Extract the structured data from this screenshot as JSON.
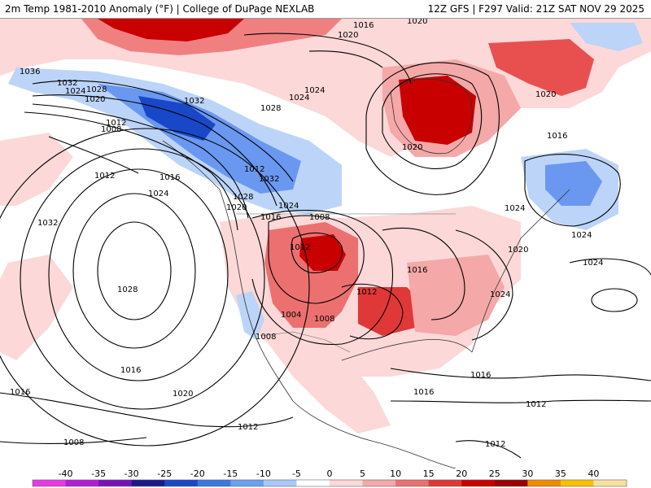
{
  "header": {
    "left": "2m Temp 1981-2010 Anomaly (°F) | College of DuPage NEXLAB",
    "right": "12Z GFS | F297 Valid: 21Z SAT NOV 29 2025"
  },
  "isobar_labels": [
    "1036",
    "1032",
    "1028",
    "1024",
    "1020",
    "1016",
    "1012",
    "1008",
    "1004"
  ],
  "map_labels": [
    {
      "id": "l1036nw",
      "text": "1036"
    },
    {
      "id": "l1032nw",
      "text": "1032"
    },
    {
      "id": "l1028nw",
      "text": "1028"
    },
    {
      "id": "l1024nw",
      "text": "1024"
    },
    {
      "id": "l1020nw",
      "text": "1020"
    },
    {
      "id": "l1012nw",
      "text": "1012"
    },
    {
      "id": "l1008nw",
      "text": "1008"
    },
    {
      "id": "l1032ak",
      "text": "1032"
    },
    {
      "id": "l1028ak",
      "text": "1028"
    },
    {
      "id": "l1024ak",
      "text": "1024"
    },
    {
      "id": "l1020ak",
      "text": "1020"
    },
    {
      "id": "l1016top",
      "text": "1016"
    },
    {
      "id": "l1020top",
      "text": "1020"
    },
    {
      "id": "l1024top",
      "text": "1024"
    },
    {
      "id": "l1020hb",
      "text": "1020"
    },
    {
      "id": "l1012hb",
      "text": "1012"
    },
    {
      "id": "l1016pac",
      "text": "1016"
    },
    {
      "id": "l1024pac",
      "text": "1024"
    },
    {
      "id": "l1028pac",
      "text": "1028"
    },
    {
      "id": "l1032pac",
      "text": "1032"
    },
    {
      "id": "l1016w",
      "text": "1016"
    },
    {
      "id": "l1020s",
      "text": "1020"
    },
    {
      "id": "l1016s",
      "text": "1016"
    },
    {
      "id": "l1012sw",
      "text": "1012"
    },
    {
      "id": "l1012s",
      "text": "1012"
    },
    {
      "id": "l1032bc",
      "text": "1032"
    },
    {
      "id": "l1028bc",
      "text": "1028"
    },
    {
      "id": "l1024bc",
      "text": "1024"
    },
    {
      "id": "l1020bc",
      "text": "1020"
    },
    {
      "id": "l1016bc",
      "text": "1016"
    },
    {
      "id": "l1008bc",
      "text": "1008"
    },
    {
      "id": "l1012bc",
      "text": "1012"
    },
    {
      "id": "l1004",
      "text": "1004"
    },
    {
      "id": "l1008sw1",
      "text": "1008"
    },
    {
      "id": "l1008sw2",
      "text": "1008"
    },
    {
      "id": "l1012ca",
      "text": "1012"
    },
    {
      "id": "l1016tx",
      "text": "1016"
    },
    {
      "id": "l1024us",
      "text": "1024"
    },
    {
      "id": "l1020se",
      "text": "1020"
    },
    {
      "id": "l1016ne",
      "text": "1016"
    },
    {
      "id": "l1024qc",
      "text": "1024"
    },
    {
      "id": "l1020qc",
      "text": "1020"
    },
    {
      "id": "l1024e",
      "text": "1024"
    },
    {
      "id": "l1024gl",
      "text": "1024"
    },
    {
      "id": "l1016atl",
      "text": "1016"
    },
    {
      "id": "l1016car",
      "text": "1016"
    },
    {
      "id": "l1012mx",
      "text": "1012"
    },
    {
      "id": "l1012car",
      "text": "1012"
    },
    {
      "id": "l1008ca",
      "text": "1008"
    }
  ],
  "legend": {
    "ticks": [
      "-40",
      "-35",
      "-30",
      "-25",
      "-20",
      "-15",
      "-10",
      "-5",
      "0",
      "5",
      "10",
      "15",
      "20",
      "25",
      "30",
      "35",
      "40"
    ],
    "colors": [
      "#e838e8",
      "#b41cd4",
      "#7a10b8",
      "#1a1a8c",
      "#1848c8",
      "#3a78e0",
      "#6aa0f0",
      "#a8c8f8",
      "#ffffff",
      "#fcd8d8",
      "#f4a8a8",
      "#ec7070",
      "#e03838",
      "#c80000",
      "#9a0000",
      "#f08a00",
      "#f8c000",
      "#f8e0a0"
    ]
  },
  "colors": {
    "cold_strong": "#1848c8",
    "cold_mid": "#6a98f0",
    "cold_light": "#bcd4f8",
    "warm_light": "#fcd8d8",
    "warm_mid": "#f08080",
    "warm_strong": "#d81818",
    "warm_max": "#a00000"
  }
}
